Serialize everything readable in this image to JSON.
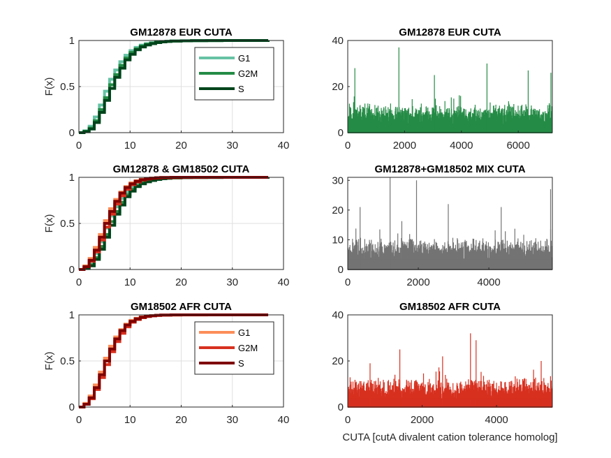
{
  "chart_data": [
    {
      "type": "line",
      "subtype": "ecdf",
      "title": "GM12878 EUR CUTA",
      "xlabel": "",
      "ylabel": "F(x)",
      "xlim": [
        0,
        40
      ],
      "ylim": [
        0,
        1
      ],
      "xticks": [
        "0",
        "10",
        "20",
        "30",
        "40"
      ],
      "yticks": [
        "0",
        "0.5",
        "1"
      ],
      "grid": true,
      "legend": "top-right",
      "series": [
        {
          "name": "G1",
          "color": "#66c2a4",
          "x": [
            0,
            1,
            2,
            3,
            4,
            5,
            6,
            7,
            8,
            9,
            10,
            11,
            12,
            13,
            14,
            15,
            16,
            17,
            18,
            20,
            22,
            25,
            28,
            32
          ],
          "y": [
            0,
            0.02,
            0.07,
            0.17,
            0.3,
            0.45,
            0.58,
            0.68,
            0.77,
            0.84,
            0.89,
            0.925,
            0.95,
            0.965,
            0.975,
            0.983,
            0.988,
            0.992,
            0.995,
            0.997,
            0.999,
            0.9995,
            0.9998,
            1.0
          ]
        },
        {
          "name": "G2M",
          "color": "#238b45",
          "x": [
            0,
            1,
            2,
            3,
            4,
            5,
            6,
            7,
            8,
            9,
            10,
            11,
            12,
            13,
            14,
            15,
            16,
            17,
            18,
            20,
            22,
            25,
            28,
            32
          ],
          "y": [
            0,
            0.015,
            0.05,
            0.13,
            0.25,
            0.38,
            0.52,
            0.63,
            0.73,
            0.81,
            0.87,
            0.91,
            0.94,
            0.96,
            0.972,
            0.981,
            0.987,
            0.991,
            0.994,
            0.996,
            0.998,
            0.9993,
            0.9997,
            1.0
          ]
        },
        {
          "name": "S",
          "color": "#00441b",
          "x": [
            0,
            1,
            2,
            3,
            4,
            5,
            6,
            7,
            8,
            9,
            10,
            11,
            12,
            13,
            14,
            15,
            16,
            17,
            18,
            20,
            22,
            25,
            28,
            32,
            37
          ],
          "y": [
            0,
            0.01,
            0.04,
            0.11,
            0.22,
            0.35,
            0.48,
            0.6,
            0.7,
            0.79,
            0.85,
            0.9,
            0.93,
            0.952,
            0.966,
            0.977,
            0.985,
            0.99,
            0.993,
            0.996,
            0.998,
            0.9992,
            0.9997,
            0.9999,
            1.0
          ]
        }
      ]
    },
    {
      "type": "bar",
      "title": "GM12878 EUR CUTA",
      "xlabel": "",
      "ylabel": "",
      "xlim": [
        0,
        7200
      ],
      "ylim": [
        0,
        40
      ],
      "xticks": [
        "0",
        "2000",
        "4000",
        "6000"
      ],
      "yticks": [
        "0",
        "20",
        "40"
      ],
      "grid": false,
      "color": "#238b45",
      "n": 7200,
      "base": 7,
      "spread": 6,
      "seed": 11,
      "peaks": [
        {
          "x": 1800,
          "y": 37
        },
        {
          "x": 4900,
          "y": 30
        },
        {
          "x": 6350,
          "y": 27
        },
        {
          "x": 250,
          "y": 28
        },
        {
          "x": 3050,
          "y": 25
        },
        {
          "x": 7150,
          "y": 26
        }
      ]
    },
    {
      "type": "line",
      "subtype": "ecdf",
      "title": "GM12878 & GM18502 CUTA",
      "xlabel": "",
      "ylabel": "F(x)",
      "xlim": [
        0,
        40
      ],
      "ylim": [
        0,
        1
      ],
      "xticks": [
        "0",
        "10",
        "20",
        "30",
        "40"
      ],
      "yticks": [
        "0",
        "0.5",
        "1"
      ],
      "grid": true,
      "legend": "none",
      "series": [
        {
          "color": "#66c2a4",
          "x": [
            0,
            1,
            2,
            3,
            4,
            5,
            6,
            7,
            8,
            9,
            10,
            11,
            12,
            13,
            14,
            15,
            16,
            17,
            18,
            20,
            22,
            25,
            28,
            32
          ],
          "y": [
            0,
            0.02,
            0.07,
            0.17,
            0.3,
            0.45,
            0.58,
            0.68,
            0.77,
            0.84,
            0.89,
            0.925,
            0.95,
            0.965,
            0.975,
            0.983,
            0.988,
            0.992,
            0.995,
            0.997,
            0.999,
            0.9995,
            0.9998,
            1.0
          ]
        },
        {
          "color": "#238b45",
          "x": [
            0,
            1,
            2,
            3,
            4,
            5,
            6,
            7,
            8,
            9,
            10,
            11,
            12,
            13,
            14,
            15,
            16,
            17,
            18,
            20,
            22,
            25,
            28,
            32
          ],
          "y": [
            0,
            0.015,
            0.05,
            0.13,
            0.25,
            0.38,
            0.52,
            0.63,
            0.73,
            0.81,
            0.87,
            0.91,
            0.94,
            0.96,
            0.972,
            0.981,
            0.987,
            0.991,
            0.994,
            0.996,
            0.998,
            0.9993,
            0.9997,
            1.0
          ]
        },
        {
          "color": "#00441b",
          "x": [
            0,
            1,
            2,
            3,
            4,
            5,
            6,
            7,
            8,
            9,
            10,
            11,
            12,
            13,
            14,
            15,
            16,
            17,
            18,
            20,
            22,
            25,
            28,
            32,
            37
          ],
          "y": [
            0,
            0.01,
            0.04,
            0.11,
            0.22,
            0.35,
            0.48,
            0.6,
            0.7,
            0.79,
            0.85,
            0.9,
            0.93,
            0.952,
            0.966,
            0.977,
            0.985,
            0.99,
            0.993,
            0.996,
            0.998,
            0.9992,
            0.9997,
            0.9999,
            1.0
          ]
        },
        {
          "color": "#fc8d59",
          "x": [
            0,
            1,
            2,
            3,
            4,
            5,
            6,
            7,
            8,
            9,
            10,
            11,
            12,
            13,
            14,
            15,
            16,
            18,
            20,
            22,
            25,
            28,
            32
          ],
          "y": [
            0,
            0.04,
            0.12,
            0.24,
            0.38,
            0.53,
            0.66,
            0.76,
            0.84,
            0.9,
            0.94,
            0.963,
            0.978,
            0.987,
            0.992,
            0.995,
            0.997,
            0.998,
            0.9988,
            0.9993,
            0.9996,
            0.9998,
            1.0
          ]
        },
        {
          "color": "#d7301f",
          "x": [
            0,
            1,
            2,
            3,
            4,
            5,
            6,
            7,
            8,
            9,
            10,
            11,
            12,
            13,
            14,
            15,
            16,
            18,
            20
          ],
          "y": [
            0,
            0.03,
            0.09,
            0.19,
            0.32,
            0.46,
            0.6,
            0.71,
            0.8,
            0.87,
            0.92,
            0.95,
            0.97,
            0.982,
            0.99,
            0.994,
            0.997,
            0.999,
            1.0
          ]
        },
        {
          "color": "#7f0000",
          "x": [
            0,
            1,
            2,
            3,
            4,
            5,
            6,
            7,
            8,
            9,
            10,
            11,
            12,
            13,
            14,
            15,
            16,
            18
          ],
          "y": [
            0,
            0.03,
            0.1,
            0.21,
            0.35,
            0.5,
            0.63,
            0.74,
            0.83,
            0.89,
            0.93,
            0.957,
            0.974,
            0.985,
            0.991,
            0.995,
            0.998,
            1.0
          ]
        }
      ]
    },
    {
      "type": "bar",
      "title": "GM12878+GM18502 MIX CUTA",
      "xlabel": "",
      "ylabel": "",
      "xlim": [
        0,
        5800
      ],
      "ylim": [
        0,
        31
      ],
      "xticks": [
        "0",
        "2000",
        "4000"
      ],
      "yticks": [
        "0",
        "10",
        "20",
        "30"
      ],
      "grid": false,
      "color": "#737373",
      "n": 5800,
      "base": 6,
      "spread": 5,
      "seed": 23,
      "peaks": [
        {
          "x": 1200,
          "y": 31
        },
        {
          "x": 1950,
          "y": 30
        },
        {
          "x": 2850,
          "y": 22
        },
        {
          "x": 5750,
          "y": 27
        },
        {
          "x": 350,
          "y": 21
        },
        {
          "x": 4350,
          "y": 21
        }
      ]
    },
    {
      "type": "line",
      "subtype": "ecdf",
      "title": "GM18502 AFR CUTA",
      "xlabel": "",
      "ylabel": "F(x)",
      "xlim": [
        0,
        40
      ],
      "ylim": [
        0,
        1
      ],
      "xticks": [
        "0",
        "10",
        "20",
        "30",
        "40"
      ],
      "yticks": [
        "0",
        "0.5",
        "1"
      ],
      "grid": true,
      "legend": "top-right",
      "series": [
        {
          "name": "G1",
          "color": "#fc8d59",
          "x": [
            0,
            1,
            2,
            3,
            4,
            5,
            6,
            7,
            8,
            9,
            10,
            11,
            12,
            13,
            14,
            15,
            16,
            18,
            20,
            22,
            25,
            28,
            32
          ],
          "y": [
            0,
            0.04,
            0.12,
            0.24,
            0.38,
            0.53,
            0.66,
            0.76,
            0.84,
            0.9,
            0.94,
            0.963,
            0.978,
            0.987,
            0.992,
            0.995,
            0.997,
            0.998,
            0.9988,
            0.9993,
            0.9996,
            0.9998,
            1.0
          ]
        },
        {
          "name": "G2M",
          "color": "#d7301f",
          "x": [
            0,
            1,
            2,
            3,
            4,
            5,
            6,
            7,
            8,
            9,
            10,
            11,
            12,
            13,
            14,
            15,
            16,
            18,
            20
          ],
          "y": [
            0,
            0.03,
            0.09,
            0.19,
            0.32,
            0.46,
            0.6,
            0.71,
            0.8,
            0.87,
            0.92,
            0.95,
            0.97,
            0.982,
            0.99,
            0.994,
            0.997,
            0.999,
            1.0
          ]
        },
        {
          "name": "S",
          "color": "#7f0000",
          "x": [
            0,
            1,
            2,
            3,
            4,
            5,
            6,
            7,
            8,
            9,
            10,
            11,
            12,
            13,
            14,
            15,
            16,
            18
          ],
          "y": [
            0,
            0.03,
            0.1,
            0.21,
            0.35,
            0.5,
            0.63,
            0.74,
            0.83,
            0.89,
            0.93,
            0.957,
            0.974,
            0.985,
            0.991,
            0.995,
            0.998,
            1.0
          ]
        }
      ]
    },
    {
      "type": "bar",
      "title": "GM18502 AFR CUTA",
      "xlabel": "CUTA [cutA divalent cation tolerance homolog]",
      "ylabel": "",
      "xlim": [
        0,
        5500
      ],
      "ylim": [
        0,
        40
      ],
      "xticks": [
        "0",
        "2000",
        "4000"
      ],
      "yticks": [
        "0",
        "20",
        "40"
      ],
      "grid": false,
      "color": "#d7301f",
      "n": 5500,
      "base": 7,
      "spread": 6,
      "seed": 37,
      "peaks": [
        {
          "x": 3300,
          "y": 32
        },
        {
          "x": 1400,
          "y": 25
        },
        {
          "x": 3450,
          "y": 29
        },
        {
          "x": 2550,
          "y": 22
        },
        {
          "x": 5200,
          "y": 20
        },
        {
          "x": 600,
          "y": 19
        }
      ]
    }
  ]
}
